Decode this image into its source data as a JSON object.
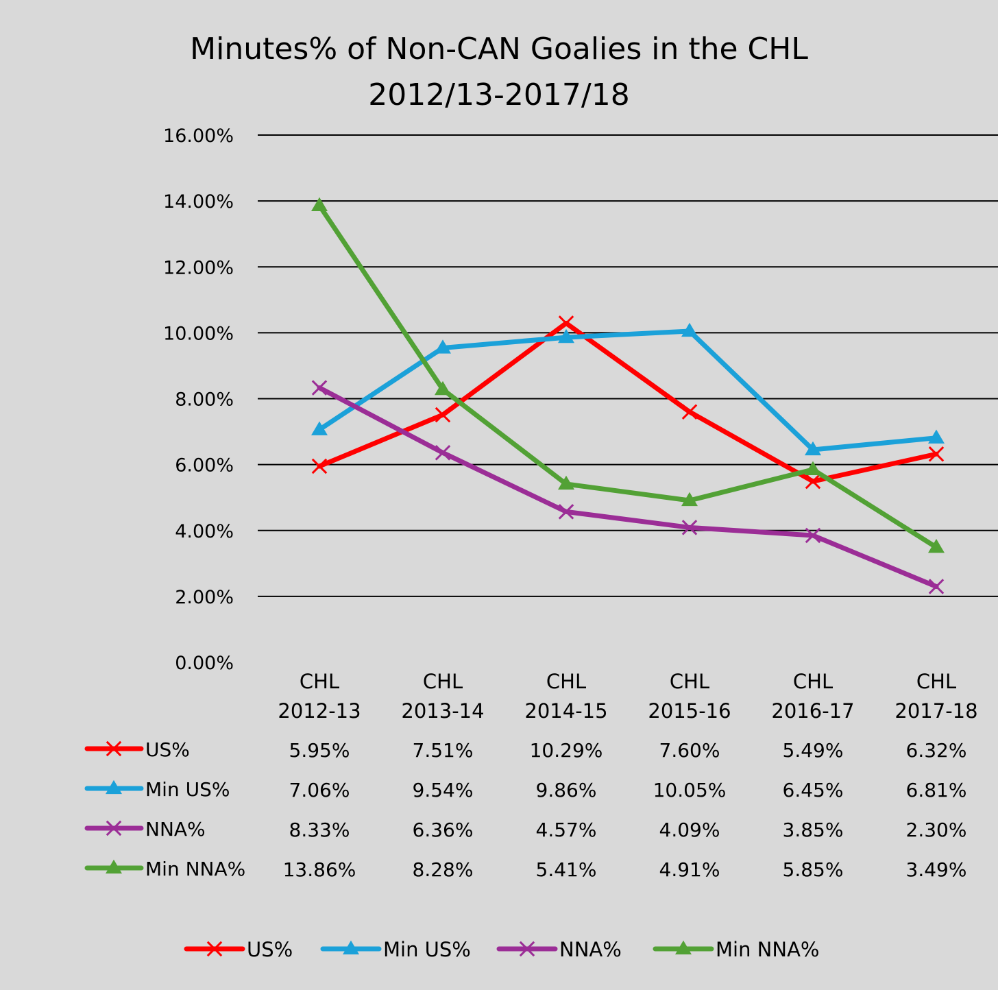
{
  "chart_data": {
    "type": "line",
    "title_lines": [
      "Minutes% of Non-CAN Goalies in the CHL",
      "2012/13-2017/18"
    ],
    "categories": [
      [
        "CHL",
        "2012-13"
      ],
      [
        "CHL",
        "2013-14"
      ],
      [
        "CHL",
        "2014-15"
      ],
      [
        "CHL",
        "2015-16"
      ],
      [
        "CHL",
        "2016-17"
      ],
      [
        "CHL",
        "2017-18"
      ]
    ],
    "y_ticks": [
      "0.00%",
      "2.00%",
      "4.00%",
      "6.00%",
      "8.00%",
      "10.00%",
      "12.00%",
      "14.00%",
      "16.00%"
    ],
    "ylim": [
      0,
      16
    ],
    "y_step": 2,
    "grid": true,
    "legend_position": "bottom",
    "series": [
      {
        "name": "US%",
        "color": "#ff0000",
        "marker": "x",
        "values": [
          5.95,
          7.51,
          10.29,
          7.6,
          5.49,
          6.32
        ],
        "labels": [
          "5.95%",
          "7.51%",
          "10.29%",
          "7.60%",
          "5.49%",
          "6.32%"
        ]
      },
      {
        "name": "Min US%",
        "color": "#1ba1d9",
        "marker": "triangle",
        "values": [
          7.06,
          9.54,
          9.86,
          10.05,
          6.45,
          6.81
        ],
        "labels": [
          "7.06%",
          "9.54%",
          "9.86%",
          "10.05%",
          "6.45%",
          "6.81%"
        ]
      },
      {
        "name": "NNA%",
        "color": "#9b2d96",
        "marker": "x",
        "values": [
          8.33,
          6.36,
          4.57,
          4.09,
          3.85,
          2.3
        ],
        "labels": [
          "8.33%",
          "6.36%",
          "4.57%",
          "4.09%",
          "3.85%",
          "2.30%"
        ]
      },
      {
        "name": "Min NNA%",
        "color": "#52a135",
        "marker": "triangle",
        "values": [
          13.86,
          8.28,
          5.41,
          4.91,
          5.85,
          3.49
        ],
        "labels": [
          "13.86%",
          "8.28%",
          "5.41%",
          "4.91%",
          "5.85%",
          "3.49%"
        ]
      }
    ]
  }
}
